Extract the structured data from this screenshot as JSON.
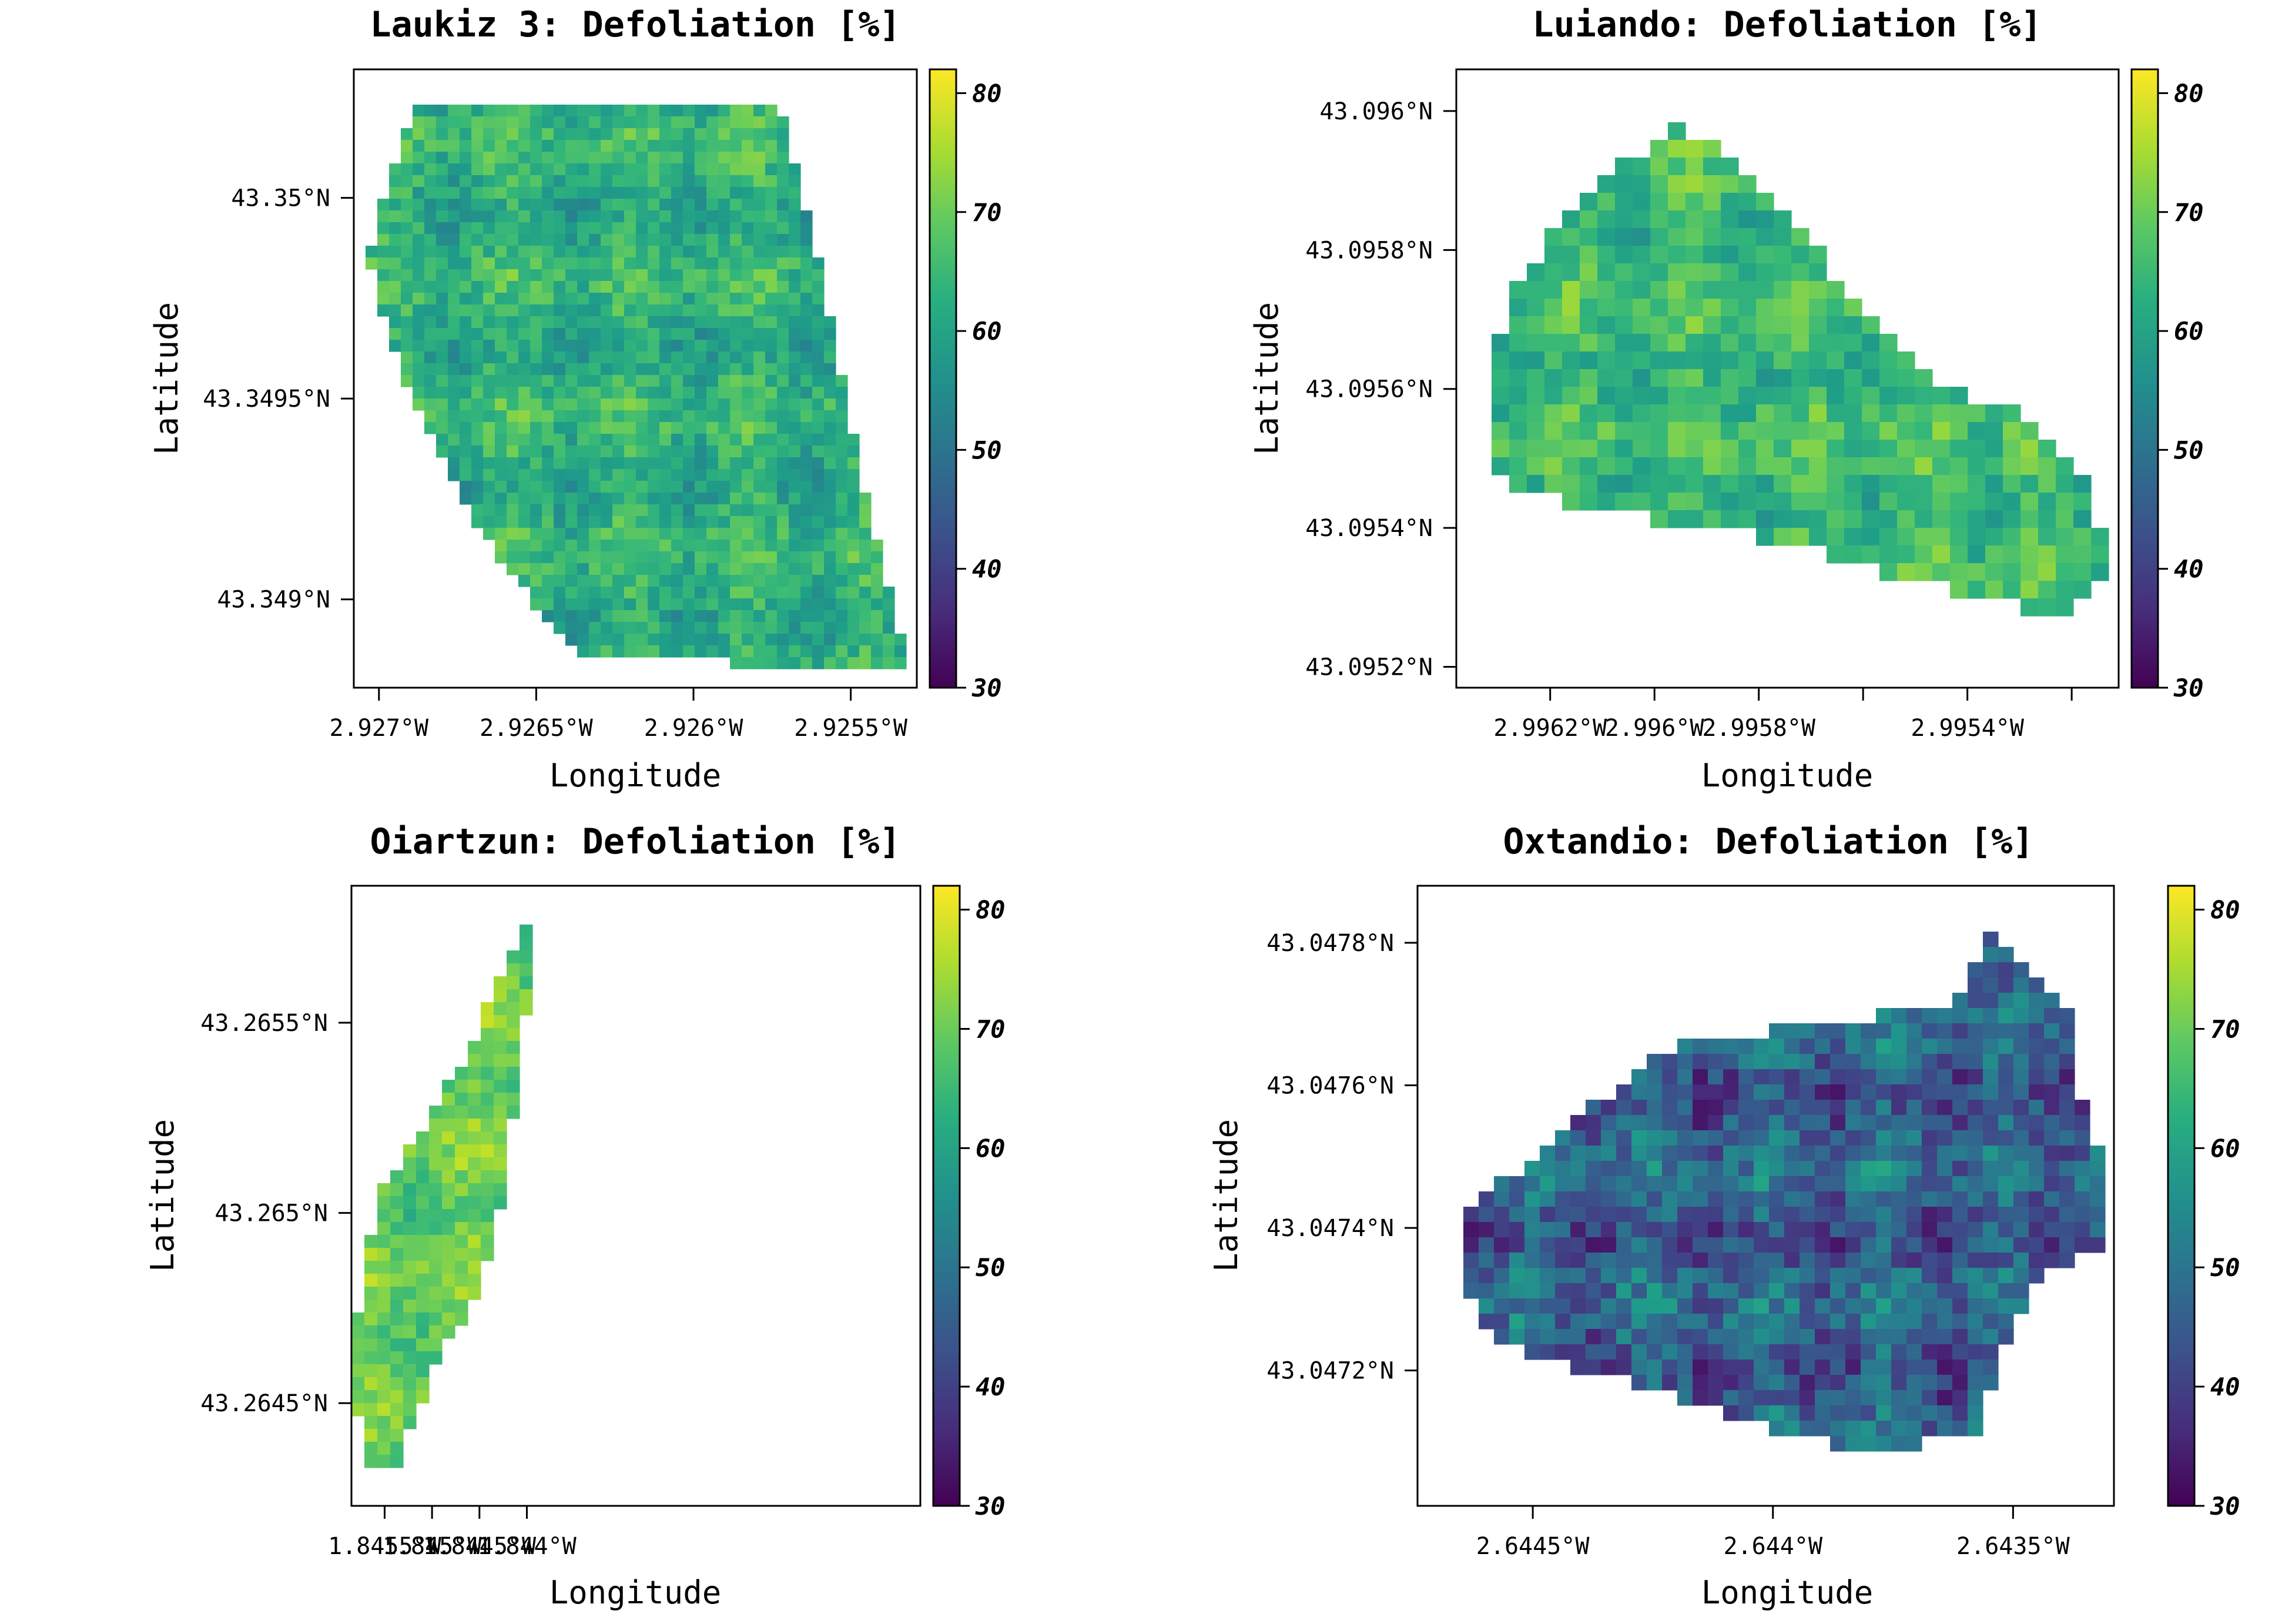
{
  "chart_data": [
    {
      "type": "heatmap",
      "title": "Laukiz 3: Defoliation [%]",
      "xlabel": "Longitude",
      "ylabel": "Latitude",
      "xticks": [
        "2.927°W",
        "2.9265°W",
        "2.926°W",
        "2.9255°W"
      ],
      "xtick_values": [
        -2.927,
        -2.9265,
        -2.926,
        -2.9255
      ],
      "yticks": [
        "43.35°N",
        "43.3495°N",
        "43.349°N"
      ],
      "ytick_values": [
        43.35,
        43.3495,
        43.349
      ],
      "xlim": [
        -2.92708,
        -2.92529
      ],
      "ylim": [
        43.34878,
        43.35032
      ],
      "colorbar": {
        "ticks": [
          "30",
          "40",
          "50",
          "60",
          "70",
          "80"
        ],
        "tick_values": [
          30,
          40,
          50,
          60,
          70,
          80
        ],
        "range": [
          30,
          82
        ]
      },
      "polygon": [
        [
          -2.92689,
          43.35022
        ],
        [
          -2.92575,
          43.35023
        ],
        [
          -2.92572,
          43.3502
        ],
        [
          -2.9256,
          43.34985
        ],
        [
          -2.92545,
          43.34925
        ],
        [
          -2.92531,
          43.34882
        ],
        [
          -2.92561,
          43.34882
        ],
        [
          -2.92585,
          43.34884
        ],
        [
          -2.92618,
          43.34885
        ],
        [
          -2.92636,
          43.34886
        ],
        [
          -2.92656,
          43.34904
        ],
        [
          -2.92673,
          43.34924
        ],
        [
          -2.92694,
          43.34958
        ],
        [
          -2.92703,
          43.34985
        ],
        [
          -2.92698,
          43.35002
        ]
      ],
      "value_stats": {
        "mean": 63,
        "sd": 6,
        "min": 45,
        "max": 76
      }
    },
    {
      "type": "heatmap",
      "title": "Luiando: Defoliation [%]",
      "xlabel": "Longitude",
      "ylabel": "Latitude",
      "xticks": [
        "2.9962°W",
        "2.996°W",
        "2.9958°W",
        "",
        "2.9954°W",
        ""
      ],
      "xtick_values": [
        -2.9962,
        -2.996,
        -2.9958,
        -2.9956,
        -2.9954,
        -2.9952
      ],
      "yticks": [
        "43.096°N",
        "43.0958°N",
        "43.0956°N",
        "43.0954°N",
        "43.0952°N"
      ],
      "ytick_values": [
        43.096,
        43.0958,
        43.0956,
        43.0954,
        43.0952
      ],
      "xlim": [
        -2.99638,
        -2.99511
      ],
      "ylim": [
        43.09517,
        43.09606
      ],
      "colorbar": {
        "ticks": [
          "30",
          "40",
          "50",
          "60",
          "70",
          "80"
        ],
        "tick_values": [
          30,
          40,
          50,
          60,
          70,
          80
        ],
        "range": [
          30,
          82
        ]
      },
      "polygon": [
        [
          -2.99595,
          43.09598
        ],
        [
          -2.99585,
          43.09593
        ],
        [
          -2.99567,
          43.09578
        ],
        [
          -2.99546,
          43.09561
        ],
        [
          -2.99528,
          43.09556
        ],
        [
          -2.99521,
          43.09551
        ],
        [
          -2.99515,
          43.09542
        ],
        [
          -2.99513,
          43.09532
        ],
        [
          -2.99523,
          43.09527
        ],
        [
          -2.99542,
          43.09531
        ],
        [
          -2.99562,
          43.09535
        ],
        [
          -2.99587,
          43.0954
        ],
        [
          -2.99607,
          43.09542
        ],
        [
          -2.99627,
          43.09546
        ],
        [
          -2.99632,
          43.0955
        ],
        [
          -2.99631,
          43.09565
        ],
        [
          -2.99626,
          43.09576
        ],
        [
          -2.99614,
          43.09588
        ]
      ],
      "value_stats": {
        "mean": 65,
        "sd": 6,
        "min": 45,
        "max": 74
      }
    },
    {
      "type": "heatmap",
      "title": "Oiartzun: Defoliation [%]",
      "xlabel": "Longitude",
      "ylabel": "Latitude",
      "xticks": [
        "1.8455°W",
        "1.845°W",
        "1.8445°W",
        "1.844°W"
      ],
      "xtick_values": [
        -1.8455,
        -1.845,
        -1.8445,
        -1.844
      ],
      "yticks": [
        "43.2655°N",
        "43.265°N",
        "43.2645°N"
      ],
      "ytick_values": [
        43.2655,
        43.265,
        43.2645
      ],
      "xlim": [
        -1.84585,
        -1.83985
      ],
      "ylim": [
        43.26423,
        43.26586
      ],
      "colorbar": {
        "ticks": [
          "30",
          "40",
          "50",
          "60",
          "70",
          "80"
        ],
        "tick_values": [
          30,
          40,
          50,
          60,
          70,
          80
        ],
        "range": [
          30,
          82
        ]
      },
      "polygon": [
        [
          -1.84402,
          43.26575
        ],
        [
          -1.84393,
          43.26568
        ],
        [
          -1.844,
          43.26555
        ],
        [
          -1.8442,
          43.26515
        ],
        [
          -1.84432,
          43.26495
        ],
        [
          -1.8446,
          43.26475
        ],
        [
          -1.845,
          43.26458
        ],
        [
          -1.8452,
          43.26444
        ],
        [
          -1.84535,
          43.26434
        ],
        [
          -1.8457,
          43.26433
        ],
        [
          -1.8458,
          43.26448
        ],
        [
          -1.8458,
          43.2647
        ],
        [
          -1.84568,
          43.2649
        ],
        [
          -1.84555,
          43.26505
        ],
        [
          -1.845,
          43.26527
        ],
        [
          -1.84462,
          43.26542
        ],
        [
          -1.84425,
          43.26565
        ]
      ],
      "value_stats": {
        "mean": 70,
        "sd": 5,
        "min": 56,
        "max": 79
      }
    },
    {
      "type": "heatmap",
      "title": "Oxtandio: Defoliation [%]",
      "xlabel": "Longitude",
      "ylabel": "Latitude",
      "xticks": [
        "2.6445°W",
        "2.644°W",
        "2.6435°W"
      ],
      "xtick_values": [
        -2.6445,
        -2.644,
        -2.6435
      ],
      "yticks": [
        "43.0478°N",
        "43.0476°N",
        "43.0474°N",
        "43.0472°N"
      ],
      "ytick_values": [
        43.0478,
        43.0476,
        43.0474,
        43.0472
      ],
      "xlim": [
        -2.64474,
        -2.64329
      ],
      "ylim": [
        43.04701,
        43.04788
      ],
      "colorbar": {
        "ticks": [
          "30",
          "40",
          "50",
          "60",
          "70",
          "80"
        ],
        "tick_values": [
          30,
          40,
          50,
          60,
          70,
          80
        ],
        "range": [
          30,
          82
        ]
      },
      "polygon": [
        [
          -2.64466,
          43.04738
        ],
        [
          -2.64462,
          43.04743
        ],
        [
          -2.64442,
          43.04755
        ],
        [
          -2.64432,
          43.0476
        ],
        [
          -2.6442,
          43.04766
        ],
        [
          -2.64398,
          43.04768
        ],
        [
          -2.64377,
          43.0477
        ],
        [
          -2.64362,
          43.04772
        ],
        [
          -2.64355,
          43.04782
        ],
        [
          -2.64346,
          43.04775
        ],
        [
          -2.64336,
          43.04768
        ],
        [
          -2.64336,
          43.04758
        ],
        [
          -2.64331,
          43.0475
        ],
        [
          -2.64331,
          43.04738
        ],
        [
          -2.64346,
          43.04732
        ],
        [
          -2.64352,
          43.04722
        ],
        [
          -2.64357,
          43.04712
        ],
        [
          -2.6438,
          43.04708
        ],
        [
          -2.64405,
          43.04713
        ],
        [
          -2.64422,
          43.04717
        ],
        [
          -2.64452,
          43.04722
        ],
        [
          -2.64462,
          43.04728
        ]
      ],
      "value_stats": {
        "mean": 46,
        "sd": 9,
        "min": 33,
        "max": 66
      }
    }
  ]
}
